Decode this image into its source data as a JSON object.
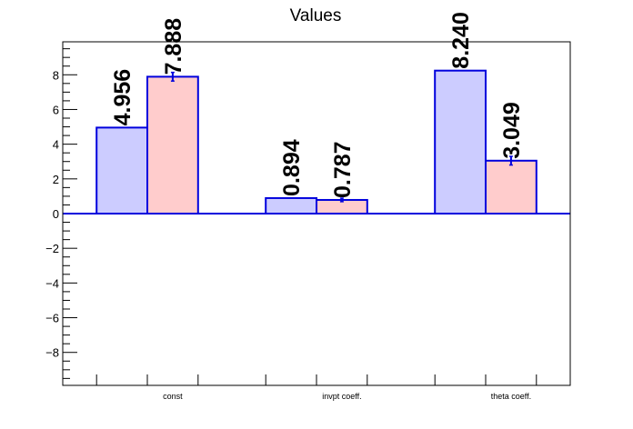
{
  "chart_data": {
    "type": "bar",
    "title": "Values",
    "categories": [
      "const",
      "invpt coeff.",
      "theta coeff."
    ],
    "series": [
      {
        "values": [
          4.956,
          0.894,
          8.24
        ],
        "errors": [
          0.0,
          0.0,
          0.0
        ],
        "labels": [
          "4.956",
          "0.894",
          "8.240"
        ],
        "color": "#ccccff"
      },
      {
        "values": [
          7.888,
          0.787,
          3.049
        ],
        "errors": [
          0.25,
          0.1,
          0.25
        ],
        "labels": [
          "7.888",
          "0.787",
          "3.049"
        ],
        "color": "#ffcccc"
      }
    ],
    "edge_color": "#0000dd",
    "ylim": [
      -9.9,
      9.9
    ],
    "yticks": [
      -8,
      -6,
      -4,
      -2,
      0,
      2,
      4,
      6,
      8
    ],
    "ytick_labels": [
      "−8",
      "−6",
      "−4",
      "−2",
      "0",
      "2",
      "4",
      "6",
      "8"
    ],
    "xlabel": "",
    "ylabel": "",
    "grid": false,
    "legend": false
  }
}
